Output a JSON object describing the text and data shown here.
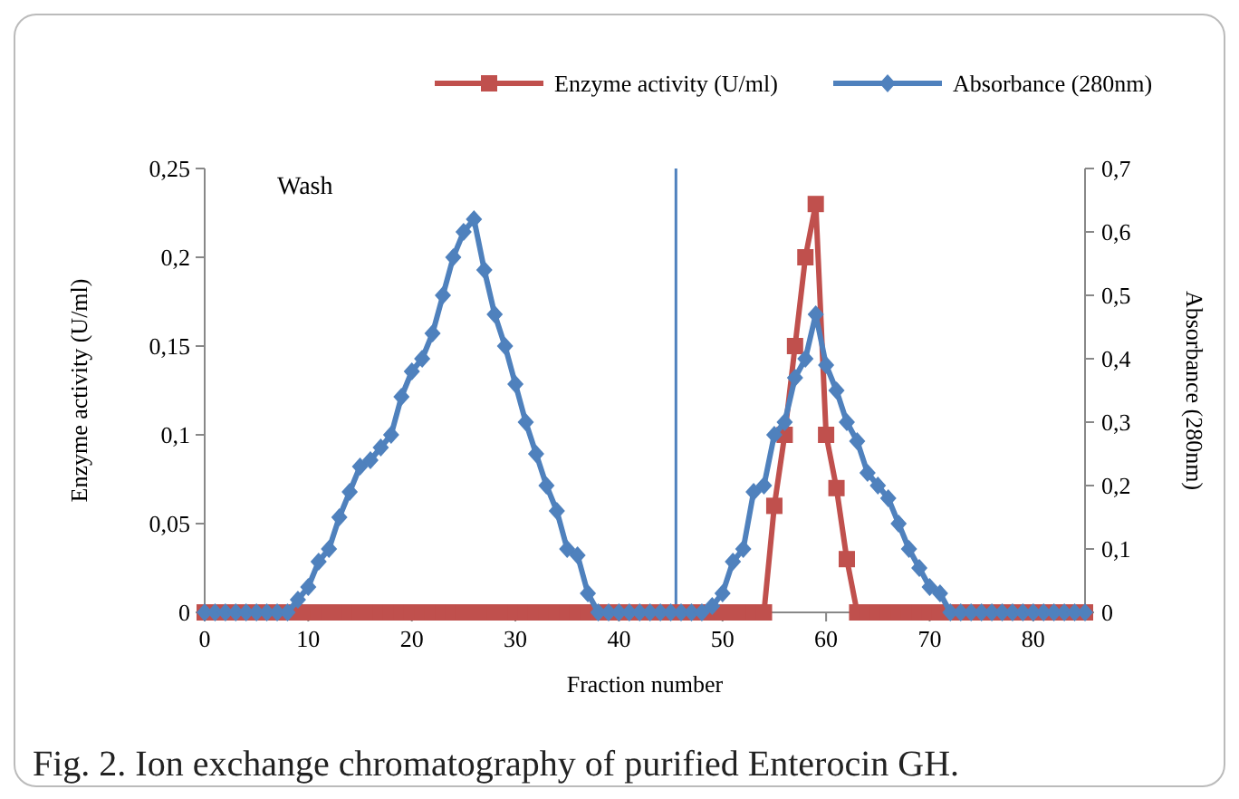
{
  "chart_data": {
    "type": "line",
    "xlabel": "Fraction number",
    "ylabel": "Enzyme activity (U/ml)",
    "y2label": "Absorbance (280nm)",
    "x": [
      0,
      1,
      2,
      3,
      4,
      5,
      6,
      7,
      8,
      9,
      10,
      11,
      12,
      13,
      14,
      15,
      16,
      17,
      18,
      19,
      20,
      21,
      22,
      23,
      24,
      25,
      26,
      27,
      28,
      29,
      30,
      31,
      32,
      33,
      34,
      35,
      36,
      37,
      38,
      39,
      40,
      41,
      42,
      43,
      44,
      45,
      46,
      47,
      48,
      49,
      50,
      51,
      52,
      53,
      54,
      55,
      56,
      57,
      58,
      59,
      60,
      61,
      62,
      63,
      64,
      65,
      66,
      67,
      68,
      69,
      70,
      71,
      72,
      73,
      74,
      75,
      76,
      77,
      78,
      79,
      80,
      81,
      82,
      83,
      84,
      85
    ],
    "series": [
      {
        "name": "Enzyme activity (U/ml)",
        "color": "#c0504d",
        "marker": "square",
        "values": [
          0,
          0,
          0,
          0,
          0,
          0,
          0,
          0,
          0,
          0,
          0,
          0,
          0,
          0,
          0,
          0,
          0,
          0,
          0,
          0,
          0,
          0,
          0,
          0,
          0,
          0,
          0,
          0,
          0,
          0,
          0,
          0,
          0,
          0,
          0,
          0,
          0,
          0,
          0,
          0,
          0,
          0,
          0,
          0,
          0,
          0,
          0,
          0,
          0,
          0,
          0,
          0,
          0,
          0,
          0,
          0.06,
          0.1,
          0.15,
          0.2,
          0.23,
          0.1,
          0.07,
          0.03,
          0,
          0,
          0,
          0,
          0,
          0,
          0,
          0,
          0,
          0,
          0,
          0,
          0,
          0,
          0,
          0,
          0,
          0,
          0,
          0,
          0,
          0,
          0
        ]
      },
      {
        "name": "Absorbance (280nm)",
        "color": "#4f81bd",
        "marker": "diamond",
        "axis": "y2",
        "values": [
          0,
          0,
          0,
          0,
          0,
          0,
          0,
          0,
          0,
          0.02,
          0.04,
          0.08,
          0.1,
          0.15,
          0.19,
          0.23,
          0.24,
          0.26,
          0.28,
          0.34,
          0.38,
          0.4,
          0.44,
          0.5,
          0.56,
          0.6,
          0.62,
          0.54,
          0.47,
          0.42,
          0.36,
          0.3,
          0.25,
          0.2,
          0.16,
          0.1,
          0.09,
          0.03,
          0,
          0,
          0,
          0,
          0,
          0,
          0,
          0,
          0,
          0,
          0,
          0.01,
          0.03,
          0.08,
          0.1,
          0.19,
          0.2,
          0.28,
          0.3,
          0.37,
          0.4,
          0.47,
          0.39,
          0.35,
          0.3,
          0.27,
          0.22,
          0.2,
          0.18,
          0.14,
          0.1,
          0.07,
          0.04,
          0.03,
          0,
          0,
          0,
          0,
          0,
          0,
          0,
          0,
          0,
          0,
          0,
          0,
          0,
          0
        ]
      }
    ],
    "xlim": [
      0,
      85
    ],
    "xticks": [
      0,
      10,
      20,
      30,
      40,
      50,
      60,
      70,
      80
    ],
    "ylim": [
      0,
      0.25
    ],
    "yticks": [
      0,
      {
        "value": 0.05,
        "label": "0,05"
      },
      {
        "value": 0.1,
        "label": "0,1"
      },
      {
        "value": 0.15,
        "label": "0,15"
      },
      {
        "value": 0.2,
        "label": "0,2"
      },
      {
        "value": 0.25,
        "label": "0,25"
      }
    ],
    "y2lim": [
      0,
      0.7
    ],
    "y2ticks": [
      0,
      {
        "value": 0.1,
        "label": "0,1"
      },
      {
        "value": 0.2,
        "label": "0,2"
      },
      {
        "value": 0.3,
        "label": "0,3"
      },
      {
        "value": 0.4,
        "label": "0,4"
      },
      {
        "value": 0.5,
        "label": "0,5"
      },
      {
        "value": 0.6,
        "label": "0,6"
      },
      {
        "value": 0.7,
        "label": "0,7"
      }
    ],
    "ref_lines": [
      {
        "axis": "x",
        "value": 45.5,
        "color": "#4f81bd"
      }
    ],
    "annotations": [
      "Wash",
      "Fig. 2. Ion exchange chromatography of purified Enterocin GH."
    ],
    "legend": "top",
    "grid": false,
    "line_style": "solid"
  }
}
